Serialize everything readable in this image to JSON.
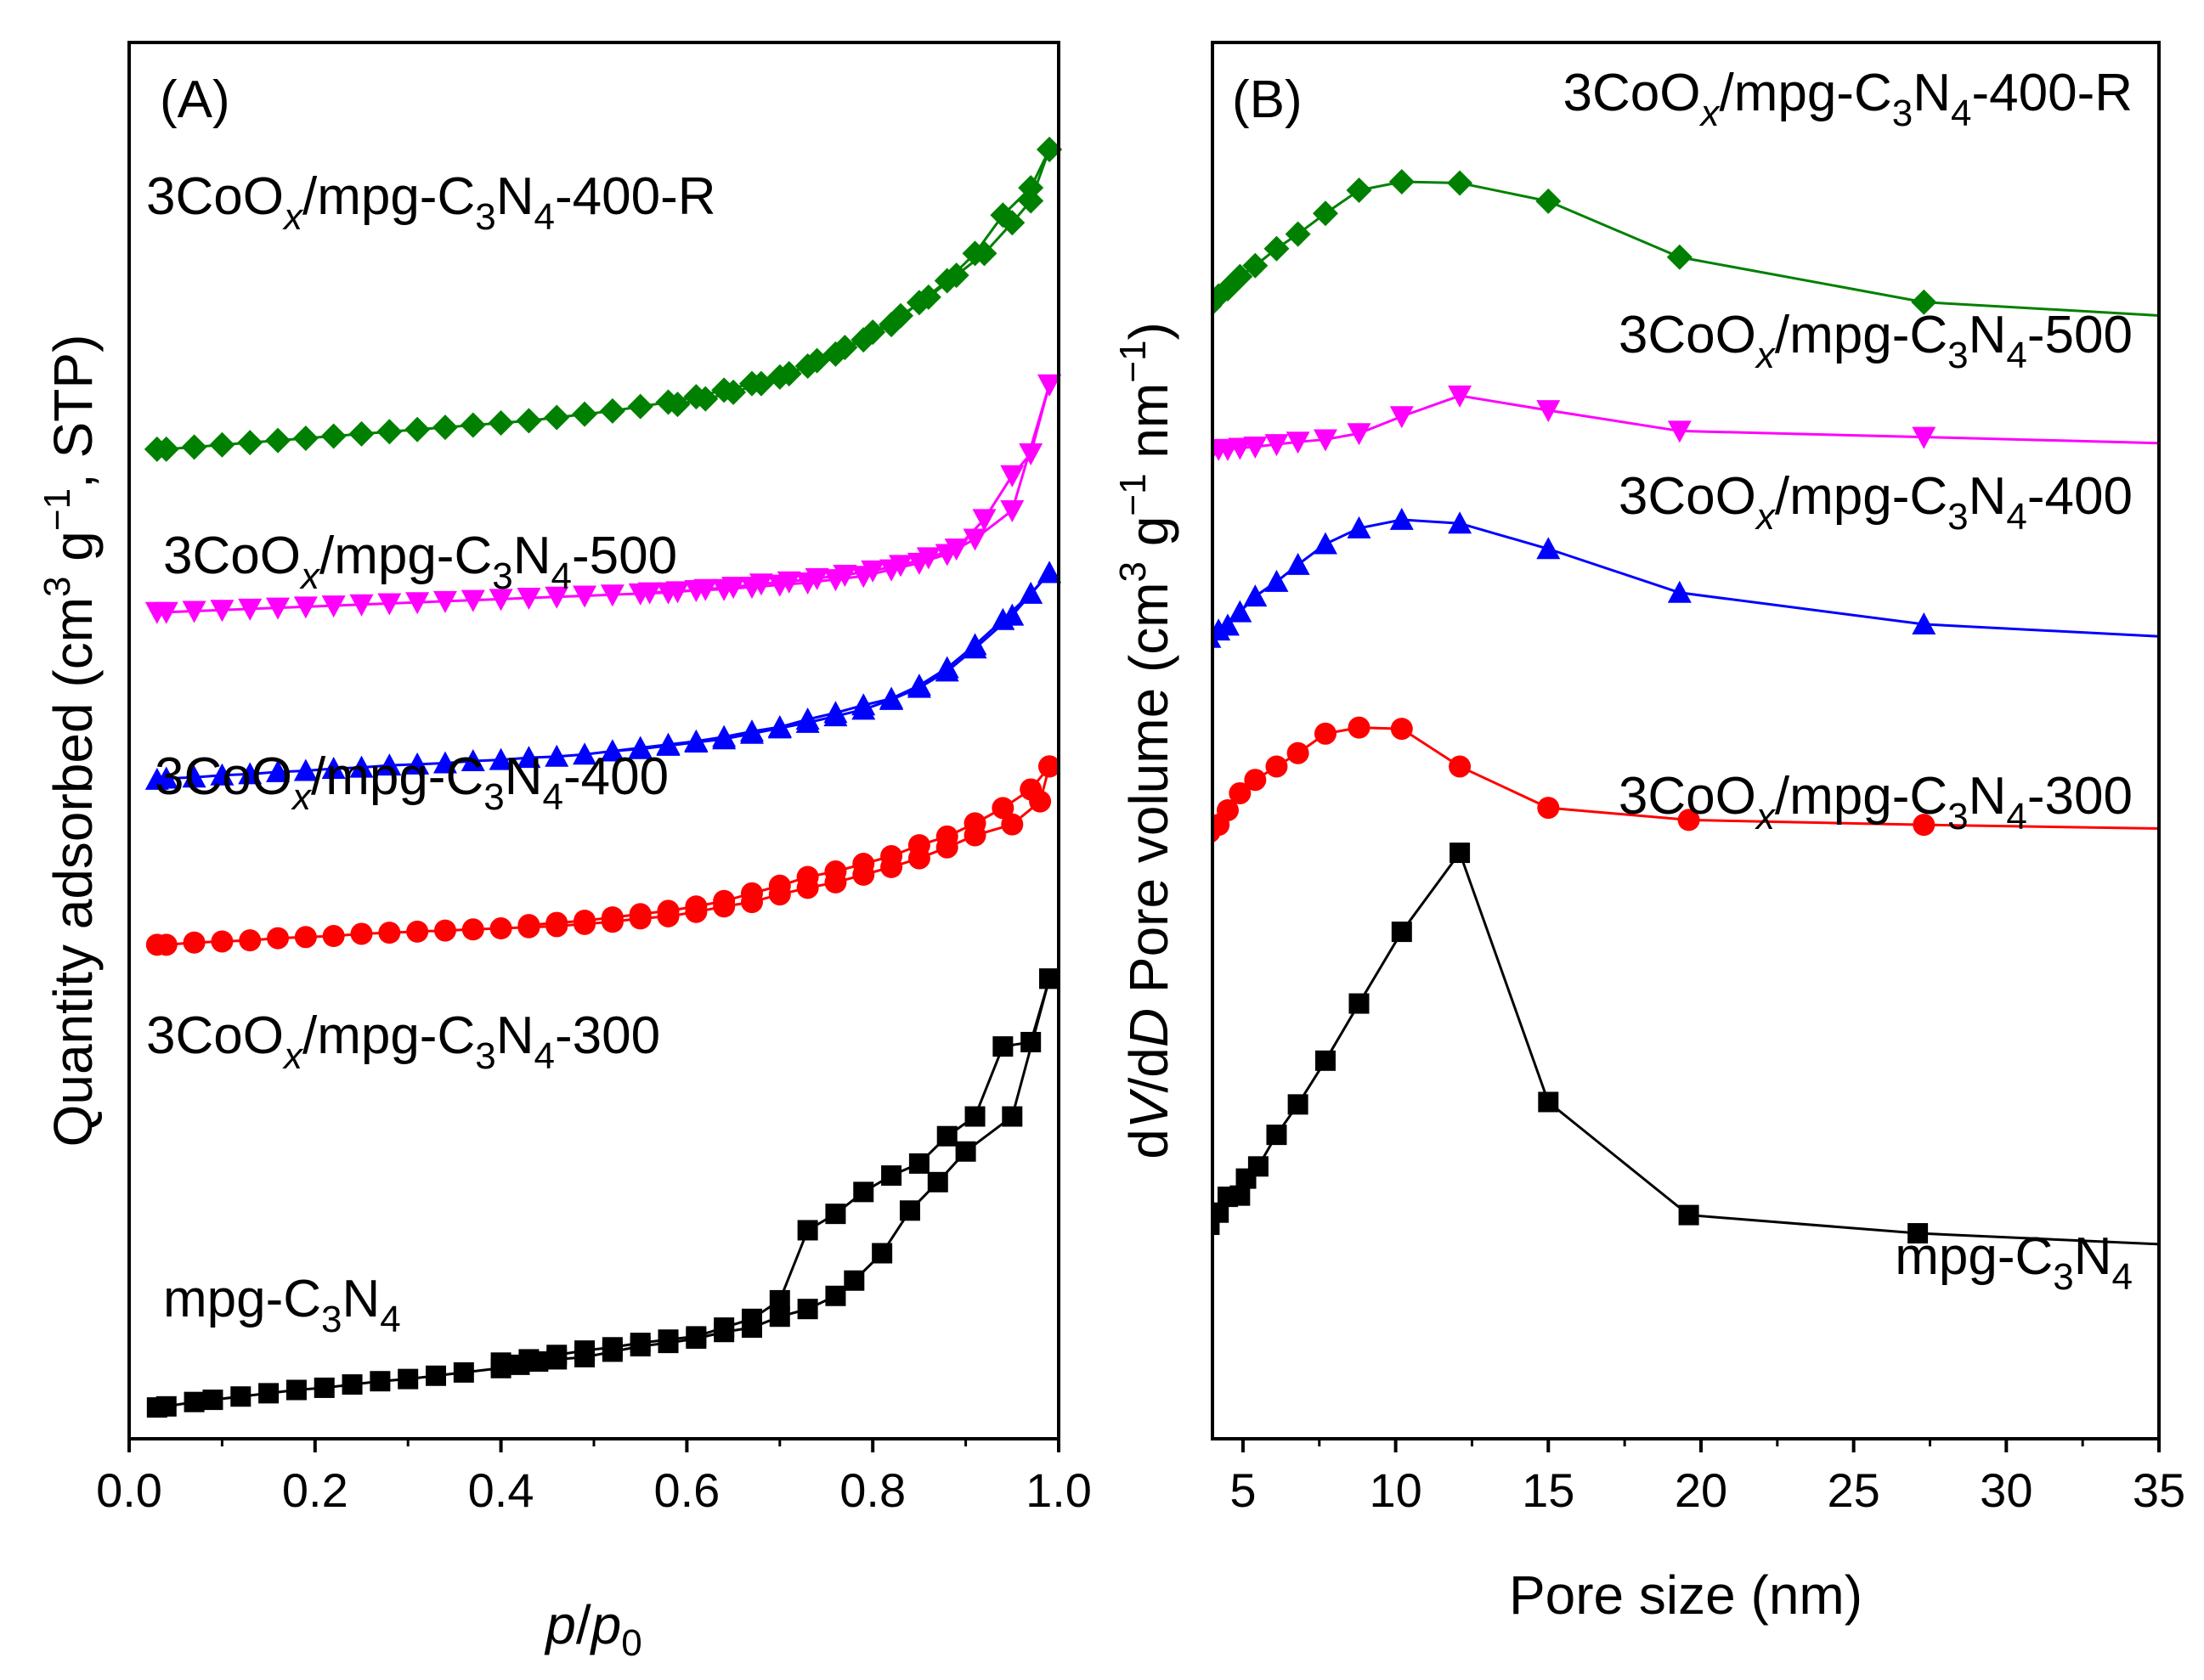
{
  "chart_data": [
    {
      "panel": "(A)",
      "type": "line",
      "xlabel_parts": [
        "p",
        "/",
        "p",
        "0"
      ],
      "xlabel": "p/p0",
      "ylabel_parts": [
        "Quantity adsorbed (cm",
        "3",
        " g",
        "−1",
        ", STP)"
      ],
      "ylabel": "Quantity adsorbed (cm3 g−1, STP)",
      "xlim": [
        0.0,
        1.0
      ],
      "ylim": [
        0,
        100
      ],
      "xticks": [
        "0.0",
        "0.2",
        "0.4",
        "0.6",
        "0.8",
        "1.0"
      ],
      "yticks_shown": false,
      "series": [
        {
          "name": "mpg-C3N4",
          "label_parts": [
            "mpg-C",
            "3",
            "N",
            "4"
          ],
          "marker": "square",
          "color": "#000000",
          "adsorption": {
            "x": [
              0.03,
              0.04,
              0.07,
              0.09,
              0.12,
              0.15,
              0.18,
              0.21,
              0.24,
              0.27,
              0.3,
              0.33,
              0.36,
              0.4,
              0.42,
              0.44,
              0.46,
              0.49,
              0.52,
              0.55,
              0.58,
              0.61,
              0.64,
              0.67,
              0.7,
              0.73,
              0.76,
              0.78,
              0.81,
              0.84,
              0.87,
              0.9,
              0.95,
              0.99
            ],
            "y": [
              1.0,
              1.1,
              1.5,
              1.7,
              2.0,
              2.3,
              2.6,
              2.8,
              3.1,
              3.4,
              3.6,
              3.9,
              4.2,
              4.6,
              4.9,
              5.2,
              5.4,
              5.6,
              6.1,
              6.6,
              6.9,
              7.3,
              7.9,
              8.3,
              9.3,
              10.0,
              11.2,
              12.6,
              15.1,
              19.0,
              21.6,
              24.4,
              27.6,
              40.2
            ]
          },
          "desorption": {
            "x": [
              0.99,
              0.97,
              0.94,
              0.91,
              0.88,
              0.85,
              0.82,
              0.79,
              0.76,
              0.73,
              0.7,
              0.67,
              0.64,
              0.61,
              0.58,
              0.55,
              0.52,
              0.49,
              0.46,
              0.43,
              0.4
            ],
            "y": [
              40.2,
              34.4,
              34.0,
              27.6,
              25.8,
              23.3,
              22.2,
              20.7,
              18.7,
              17.2,
              10.8,
              9.1,
              8.3,
              7.5,
              7.2,
              6.9,
              6.5,
              6.2,
              5.8,
              5.4,
              5.1
            ]
          }
        },
        {
          "name": "3CoOx/mpg-C3N4-300",
          "label_parts": [
            "3CoO",
            "x",
            "/mpg-C",
            "3",
            "N",
            "4",
            "-300"
          ],
          "marker": "circle",
          "color": "#ff0000",
          "adsorption": {
            "x": [
              0.03,
              0.04,
              0.07,
              0.1,
              0.13,
              0.16,
              0.19,
              0.22,
              0.25,
              0.28,
              0.31,
              0.34,
              0.37,
              0.4,
              0.43,
              0.46,
              0.49,
              0.52,
              0.55,
              0.58,
              0.61,
              0.64,
              0.67,
              0.7,
              0.73,
              0.76,
              0.79,
              0.82,
              0.85,
              0.88,
              0.91,
              0.95,
              0.98,
              0.99
            ],
            "y": [
              43.3,
              43.3,
              43.5,
              43.6,
              43.7,
              43.9,
              44.0,
              44.1,
              44.3,
              44.4,
              44.5,
              44.6,
              44.7,
              44.8,
              44.9,
              45.0,
              45.2,
              45.4,
              45.7,
              45.9,
              46.3,
              46.8,
              47.2,
              47.9,
              48.5,
              49.0,
              49.7,
              50.4,
              51.2,
              52.2,
              53.3,
              54.3,
              56.4,
              59.6
            ]
          },
          "desorption": {
            "x": [
              0.99,
              0.97,
              0.94,
              0.91,
              0.88,
              0.85,
              0.82,
              0.79,
              0.76,
              0.73,
              0.7,
              0.67,
              0.64,
              0.61,
              0.58,
              0.55,
              0.52,
              0.49,
              0.46,
              0.43
            ],
            "y": [
              59.6,
              57.5,
              55.8,
              54.4,
              53.2,
              52.4,
              51.4,
              50.7,
              50.0,
              49.5,
              48.7,
              48.0,
              47.3,
              46.8,
              46.4,
              46.1,
              45.8,
              45.5,
              45.3,
              45.1
            ]
          }
        },
        {
          "name": "3CoOx/mpg-C3N4-400",
          "label_parts": [
            "3CoO",
            "x",
            "/mpg-C",
            "3",
            "N",
            "4",
            "-400"
          ],
          "marker": "triangle-up",
          "color": "#0000ff",
          "adsorption": {
            "x": [
              0.03,
              0.04,
              0.07,
              0.1,
              0.13,
              0.16,
              0.19,
              0.22,
              0.25,
              0.28,
              0.31,
              0.34,
              0.37,
              0.4,
              0.43,
              0.46,
              0.49,
              0.52,
              0.55,
              0.58,
              0.61,
              0.64,
              0.67,
              0.7,
              0.73,
              0.76,
              0.79,
              0.82,
              0.85,
              0.88,
              0.91,
              0.95,
              0.99
            ],
            "y": [
              58.4,
              58.5,
              58.6,
              58.8,
              58.9,
              59.1,
              59.2,
              59.4,
              59.5,
              59.7,
              59.8,
              59.9,
              60.1,
              60.2,
              60.4,
              60.5,
              60.7,
              61.0,
              61.2,
              61.5,
              61.8,
              62.1,
              62.6,
              63.1,
              63.6,
              64.2,
              64.8,
              65.7,
              66.8,
              68.3,
              70.4,
              73.4,
              77.3
            ]
          },
          "desorption": {
            "x": [
              0.99,
              0.97,
              0.94,
              0.91,
              0.88,
              0.85,
              0.82,
              0.79,
              0.76,
              0.73,
              0.7,
              0.67,
              0.64,
              0.61,
              0.58,
              0.55,
              0.52
            ],
            "y": [
              77.3,
              75.4,
              73.0,
              70.7,
              68.6,
              67.0,
              65.8,
              65.2,
              64.5,
              63.9,
              63.2,
              62.8,
              62.3,
              61.9,
              61.6,
              61.3,
              61.0
            ]
          }
        },
        {
          "name": "3CoOx/mpg-C3N4-500",
          "label_parts": [
            "3CoO",
            "x",
            "/mpg-C",
            "3",
            "N",
            "4",
            "-500"
          ],
          "marker": "triangle-down",
          "color": "#ff00ff",
          "adsorption": {
            "x": [
              0.03,
              0.04,
              0.07,
              0.1,
              0.13,
              0.16,
              0.19,
              0.22,
              0.25,
              0.28,
              0.31,
              0.34,
              0.37,
              0.4,
              0.43,
              0.46,
              0.49,
              0.52,
              0.55,
              0.58,
              0.61,
              0.64,
              0.67,
              0.7,
              0.73,
              0.76,
              0.79,
              0.82,
              0.85,
              0.88,
              0.91,
              0.95,
              0.99
            ],
            "y": [
              73.7,
              73.7,
              73.8,
              73.9,
              74.0,
              74.1,
              74.2,
              74.3,
              74.4,
              74.5,
              74.6,
              74.7,
              74.8,
              74.9,
              75.0,
              75.1,
              75.2,
              75.3,
              75.4,
              75.5,
              75.7,
              75.8,
              76.0,
              76.2,
              76.4,
              76.7,
              77.0,
              77.6,
              78.2,
              79.0,
              80.4,
              83.0,
              94.5
            ]
          },
          "desorption": {
            "x": [
              0.99,
              0.97,
              0.95,
              0.92,
              0.89,
              0.86,
              0.83,
              0.8,
              0.77,
              0.74,
              0.71,
              0.68,
              0.65,
              0.62,
              0.59,
              0.56
            ],
            "y": [
              94.5,
              88.2,
              86.2,
              82.2,
              79.5,
              78.7,
              78.0,
              77.5,
              77.1,
              76.8,
              76.5,
              76.3,
              76.0,
              75.8,
              75.6,
              75.5
            ]
          }
        },
        {
          "name": "3CoOx/mpg-C3N4-400-R",
          "label_parts": [
            "3CoO",
            "x",
            "/mpg-C",
            "3",
            "N",
            "4",
            "-400-R"
          ],
          "marker": "diamond",
          "color": "#008000",
          "adsorption": {
            "x": [
              0.03,
              0.04,
              0.07,
              0.1,
              0.13,
              0.16,
              0.19,
              0.22,
              0.25,
              0.28,
              0.31,
              0.34,
              0.37,
              0.4,
              0.43,
              0.46,
              0.49,
              0.52,
              0.55,
              0.58,
              0.61,
              0.64,
              0.67,
              0.7,
              0.73,
              0.76,
              0.79,
              0.82,
              0.85,
              0.88,
              0.91,
              0.94,
              0.97,
              0.99
            ],
            "y": [
              88.6,
              88.6,
              88.8,
              89.0,
              89.2,
              89.4,
              89.6,
              89.8,
              90.0,
              90.2,
              90.4,
              90.6,
              90.8,
              91.0,
              91.2,
              91.5,
              91.8,
              92.1,
              92.5,
              92.9,
              93.4,
              94.0,
              94.6,
              95.2,
              96.2,
              97.3,
              98.6,
              100.0,
              102.0,
              104.0,
              106.5,
              110.0,
              112.5,
              116.0
            ]
          },
          "desorption": {
            "x": [
              0.99,
              0.97,
              0.95,
              0.92,
              0.89,
              0.86,
              0.83,
              0.8,
              0.77,
              0.74,
              0.71,
              0.68,
              0.65,
              0.62,
              0.59
            ],
            "y": [
              116.0,
              111.3,
              109.3,
              106.5,
              104.5,
              102.5,
              100.8,
              99.3,
              97.9,
              96.7,
              95.5,
              94.6,
              93.8,
              93.2,
              92.7
            ]
          }
        }
      ]
    },
    {
      "panel": "(B)",
      "type": "line",
      "xlabel": "Pore size (nm)",
      "ylabel_parts": [
        "d",
        "V",
        "/d",
        "D",
        " Pore volume (cm",
        "3",
        " g",
        "−1",
        " nm",
        "−1",
        ")"
      ],
      "ylabel": "dV/dD Pore volume (cm3 g−1 nm−1)",
      "xlim": [
        4,
        35
      ],
      "ylim": [
        0,
        100
      ],
      "xticks": [
        "5",
        "10",
        "15",
        "20",
        "25",
        "30",
        "35"
      ],
      "yticks_shown": false,
      "series": [
        {
          "name": "mpg-C3N4",
          "label_parts": [
            "mpg-C",
            "3",
            "N",
            "4"
          ],
          "marker": "square",
          "color": "#000000",
          "x": [
            3.9,
            4.2,
            4.5,
            4.9,
            5.1,
            5.5,
            6.1,
            6.8,
            7.7,
            8.8,
            10.2,
            12.1,
            15.0,
            19.6,
            27.1,
            35.0
          ],
          "y": [
            9.5,
            10.5,
            11.8,
            11.9,
            13.3,
            14.3,
            16.9,
            19.4,
            23.0,
            27.7,
            33.6,
            40.1,
            19.6,
            10.3,
            8.8,
            7.9
          ]
        },
        {
          "name": "3CoOx/mpg-C3N4-300",
          "label_parts": [
            "3CoO",
            "x",
            "/mpg-C",
            "3",
            "N",
            "4",
            "-300"
          ],
          "marker": "circle",
          "color": "#ff0000",
          "x": [
            3.9,
            4.2,
            4.5,
            4.9,
            5.4,
            6.1,
            6.8,
            7.7,
            8.8,
            10.2,
            12.1,
            15.0,
            19.6,
            27.3,
            35.0
          ],
          "y": [
            41.8,
            42.4,
            43.6,
            45.0,
            46.1,
            47.2,
            48.3,
            49.9,
            50.4,
            50.3,
            47.2,
            43.8,
            42.8,
            42.4,
            42.1
          ]
        },
        {
          "name": "3CoOx/mpg-C3N4-400",
          "label_parts": [
            "3CoO",
            "x",
            "/mpg-C",
            "3",
            "N",
            "4",
            "-400"
          ],
          "marker": "triangle-up",
          "color": "#0000ff",
          "x": [
            3.9,
            4.2,
            4.5,
            4.9,
            5.4,
            6.1,
            6.8,
            7.7,
            8.8,
            10.2,
            12.1,
            15.0,
            19.3,
            27.3,
            35.0
          ],
          "y": [
            57.8,
            58.4,
            58.8,
            59.9,
            61.2,
            62.4,
            63.8,
            65.5,
            66.8,
            67.5,
            67.2,
            65.1,
            61.5,
            58.9,
            57.9
          ]
        },
        {
          "name": "3CoOx/mpg-C3N4-500",
          "label_parts": [
            "3CoO",
            "x",
            "/mpg-C",
            "3",
            "N",
            "4",
            "-500"
          ],
          "marker": "triangle-down",
          "color": "#ff00ff",
          "x": [
            3.9,
            4.2,
            4.5,
            4.9,
            5.4,
            6.1,
            6.8,
            7.7,
            8.8,
            10.2,
            12.1,
            15.0,
            19.3,
            27.3,
            35.0
          ],
          "y": [
            72.9,
            73.3,
            73.3,
            73.4,
            73.5,
            73.7,
            73.9,
            74.1,
            74.6,
            76.0,
            77.7,
            76.5,
            74.8,
            74.3,
            73.8
          ]
        },
        {
          "name": "3CoOx/mpg-C3N4-400-R",
          "label_parts": [
            "3CoO",
            "x",
            "/mpg-C",
            "3",
            "N",
            "4",
            "-400-R"
          ],
          "marker": "diamond",
          "color": "#008000",
          "x": [
            3.9,
            4.2,
            4.5,
            4.9,
            5.4,
            6.1,
            6.8,
            7.7,
            8.8,
            10.2,
            12.1,
            15.0,
            19.3,
            27.3,
            35.0
          ],
          "y": [
            85.1,
            85.9,
            86.5,
            87.5,
            88.4,
            89.8,
            91.0,
            92.7,
            94.6,
            95.3,
            95.2,
            93.7,
            89.1,
            85.4,
            84.3
          ]
        }
      ]
    }
  ]
}
